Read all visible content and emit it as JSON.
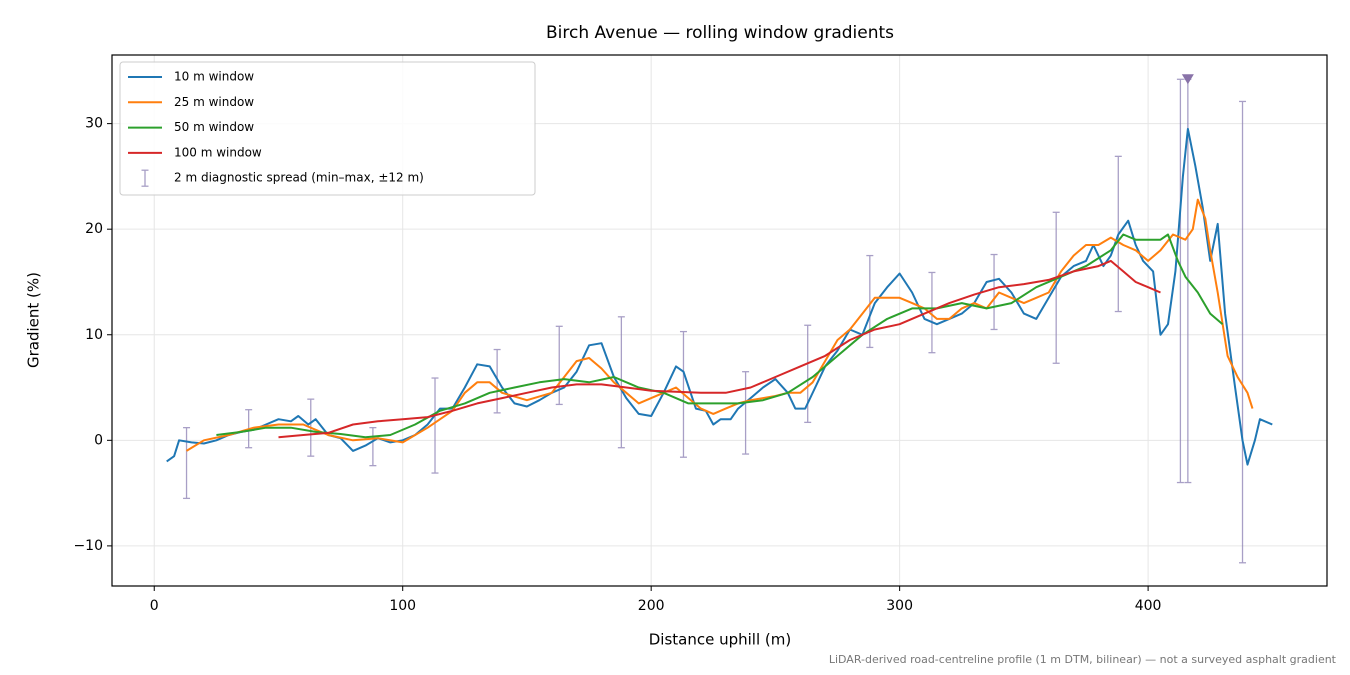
{
  "chart_data": {
    "type": "line",
    "title": "Birch Avenue — rolling window gradients",
    "xlabel": "Distance uphill (m)",
    "ylabel": "Gradient (%)",
    "caption": "LiDAR-derived road-centreline profile (1 m DTM, bilinear) — not a surveyed asphalt gradient",
    "xlim": [
      -17,
      472
    ],
    "ylim": [
      -13.8,
      36.5
    ],
    "xticks": [
      0,
      100,
      200,
      300,
      400
    ],
    "yticks": [
      {
        "value": -10,
        "label": "−10"
      },
      0,
      10,
      20,
      30
    ],
    "grid": true,
    "legend": "upper left",
    "series": [
      {
        "name": "10 m window",
        "color": "#1f77b4",
        "x": [
          5,
          8,
          10,
          15,
          20,
          25,
          30,
          35,
          40,
          45,
          50,
          55,
          58,
          62,
          65,
          70,
          75,
          80,
          85,
          90,
          95,
          100,
          105,
          110,
          115,
          120,
          125,
          130,
          135,
          140,
          145,
          150,
          155,
          160,
          165,
          170,
          175,
          180,
          185,
          190,
          195,
          200,
          205,
          210,
          213,
          218,
          222,
          225,
          228,
          232,
          235,
          240,
          245,
          250,
          255,
          258,
          262,
          266,
          270,
          275,
          280,
          285,
          290,
          295,
          300,
          305,
          310,
          315,
          320,
          325,
          330,
          335,
          340,
          345,
          350,
          355,
          360,
          365,
          370,
          375,
          378,
          382,
          385,
          388,
          392,
          395,
          398,
          402,
          405,
          408,
          411,
          414,
          416,
          419,
          422,
          425,
          428,
          431,
          435,
          438,
          440,
          443,
          445,
          450
        ],
        "values": [
          -2,
          -1.5,
          0,
          -0.2,
          -0.3,
          0,
          0.5,
          0.8,
          1,
          1.5,
          2,
          1.8,
          2.3,
          1.5,
          2,
          0.5,
          0.2,
          -1,
          -0.5,
          0.2,
          -0.2,
          0,
          0.5,
          1.5,
          3,
          3,
          5,
          7.2,
          7,
          5,
          3.5,
          3.2,
          3.8,
          4.5,
          5,
          6.5,
          9,
          9.2,
          6,
          4,
          2.5,
          2.3,
          4.5,
          7,
          6.5,
          3,
          2.8,
          1.5,
          2,
          2,
          3,
          4,
          5,
          5.8,
          4.5,
          3,
          3,
          5,
          7,
          8.5,
          10.5,
          10,
          13,
          14.5,
          15.8,
          14,
          11.5,
          11,
          11.5,
          12,
          13,
          15,
          15.3,
          14,
          12,
          11.5,
          13.5,
          15.5,
          16.5,
          17,
          18.5,
          16.5,
          17.5,
          19.5,
          20.8,
          18.5,
          17,
          16,
          10,
          11,
          16,
          25,
          29.5,
          26,
          22,
          17,
          20.5,
          12,
          5,
          0,
          -2.3,
          0,
          2,
          1.5
        ]
      },
      {
        "name": "25 m window",
        "color": "#ff7f0e",
        "x": [
          13,
          20,
          30,
          40,
          50,
          60,
          65,
          70,
          80,
          90,
          100,
          110,
          120,
          125,
          130,
          135,
          140,
          150,
          160,
          165,
          170,
          175,
          180,
          185,
          190,
          195,
          200,
          205,
          210,
          215,
          220,
          225,
          230,
          235,
          240,
          245,
          250,
          255,
          260,
          265,
          270,
          275,
          280,
          285,
          290,
          295,
          300,
          305,
          310,
          315,
          320,
          325,
          330,
          335,
          340,
          345,
          350,
          355,
          360,
          365,
          370,
          375,
          380,
          385,
          390,
          395,
          400,
          405,
          410,
          415,
          418,
          420,
          423,
          425,
          428,
          432,
          436,
          440,
          442
        ],
        "values": [
          -1,
          0,
          0.5,
          1.2,
          1.5,
          1.5,
          1,
          0.5,
          0,
          0.2,
          -0.2,
          1.2,
          2.8,
          4.5,
          5.5,
          5.5,
          4.5,
          3.8,
          4.5,
          6,
          7.5,
          7.8,
          6.8,
          5.5,
          4.5,
          3.5,
          4,
          4.5,
          5,
          4,
          3,
          2.5,
          3,
          3.5,
          3.8,
          4,
          4.2,
          4.5,
          4.5,
          5.5,
          7.5,
          9.5,
          10.5,
          12,
          13.5,
          13.5,
          13.5,
          13,
          12.5,
          11.5,
          11.5,
          12.5,
          13,
          12.5,
          14,
          13.5,
          13,
          13.5,
          14,
          16,
          17.5,
          18.5,
          18.5,
          19.2,
          18.5,
          18,
          17,
          18,
          19.5,
          19,
          20,
          22.8,
          21,
          18,
          14,
          8,
          6,
          4.5,
          3
        ]
      },
      {
        "name": "50 m window",
        "color": "#2ca02c",
        "x": [
          25,
          35,
          45,
          55,
          65,
          75,
          85,
          95,
          105,
          115,
          125,
          135,
          145,
          155,
          165,
          175,
          185,
          195,
          205,
          215,
          225,
          235,
          245,
          255,
          265,
          275,
          285,
          295,
          305,
          315,
          325,
          335,
          345,
          355,
          365,
          375,
          385,
          390,
          395,
          400,
          405,
          408,
          412,
          415,
          420,
          425,
          430
        ],
        "values": [
          0.5,
          0.8,
          1.2,
          1.2,
          0.8,
          0.6,
          0.3,
          0.5,
          1.5,
          2.8,
          3.5,
          4.5,
          5,
          5.5,
          5.8,
          5.5,
          6,
          5,
          4.5,
          3.5,
          3.5,
          3.5,
          3.8,
          4.5,
          6,
          8,
          10,
          11.5,
          12.5,
          12.5,
          13,
          12.5,
          13,
          14.5,
          15.5,
          16.5,
          18,
          19.5,
          19,
          19,
          19,
          19.5,
          17,
          15.5,
          14,
          12,
          11
        ]
      },
      {
        "name": "100 m window",
        "color": "#d62728",
        "x": [
          50,
          60,
          70,
          80,
          90,
          100,
          110,
          120,
          130,
          140,
          150,
          160,
          170,
          180,
          190,
          200,
          210,
          220,
          230,
          240,
          250,
          260,
          270,
          280,
          290,
          300,
          310,
          320,
          330,
          340,
          350,
          360,
          370,
          380,
          385,
          390,
          395,
          400,
          405
        ],
        "values": [
          0.3,
          0.5,
          0.7,
          1.5,
          1.8,
          2,
          2.2,
          2.8,
          3.5,
          4,
          4.5,
          5,
          5.3,
          5.3,
          5,
          4.7,
          4.6,
          4.5,
          4.5,
          5,
          6,
          7,
          8,
          9.5,
          10.5,
          11,
          12,
          13,
          13.8,
          14.5,
          14.8,
          15.2,
          16,
          16.5,
          17,
          16,
          15,
          14.5,
          14
        ]
      }
    ],
    "spread": {
      "name": "2 m diagnostic spread (min–max, ±12 m)",
      "color": "#8c80b4",
      "x": [
        13,
        38,
        63,
        88,
        113,
        138,
        163,
        188,
        213,
        238,
        263,
        288,
        313,
        338,
        363,
        388,
        413,
        416,
        438
      ],
      "low": [
        -5.5,
        -0.7,
        -1.5,
        -2.4,
        -3.1,
        2.6,
        3.4,
        -0.7,
        -1.6,
        -1.3,
        1.7,
        8.8,
        8.3,
        10.5,
        7.3,
        12.2,
        -4,
        -4,
        -11.6
      ],
      "high": [
        1.2,
        2.9,
        3.9,
        1.2,
        5.9,
        8.6,
        10.8,
        11.7,
        10.3,
        6.5,
        10.9,
        17.5,
        15.9,
        17.6,
        21.6,
        26.9,
        34.2,
        34.2,
        32.1
      ]
    },
    "peak_marker": {
      "x": 416,
      "y": 34.2,
      "color": "#8872a8"
    }
  }
}
